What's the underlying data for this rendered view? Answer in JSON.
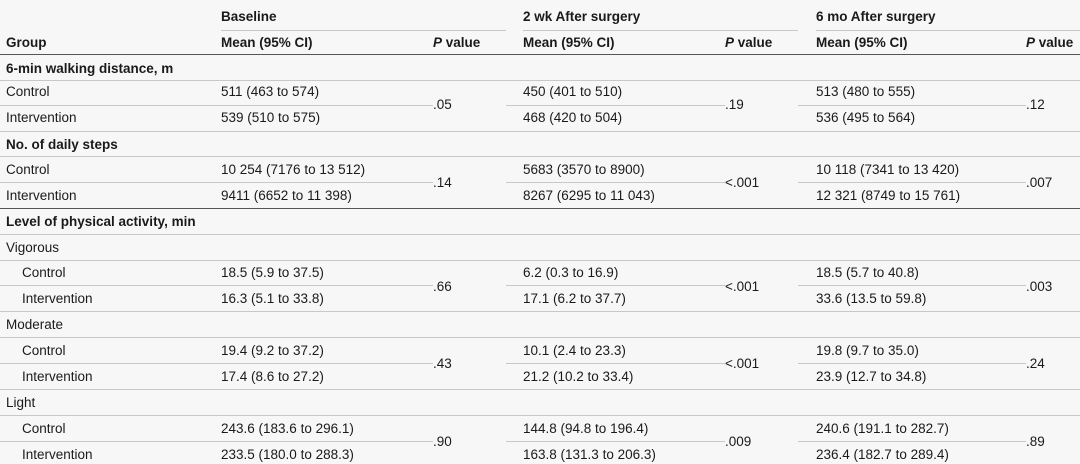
{
  "headers": {
    "group": "Group",
    "periods": [
      "Baseline",
      "2 wk After surgery",
      "6 mo After surgery"
    ],
    "mean_label": "Mean (95% CI)",
    "p_label_italic": "P",
    "p_label_rest": " value"
  },
  "sections": [
    {
      "title": "6-min walking distance, m",
      "blocks": [
        {
          "rows": [
            {
              "label": "Control",
              "values": [
                "511 (463 to 574)",
                "450 (401 to 510)",
                "513 (480 to 555)"
              ]
            },
            {
              "label": "Intervention",
              "values": [
                "539 (510 to 575)",
                "468 (420 to 504)",
                "536 (495 to 564)"
              ]
            }
          ],
          "p": [
            ".05",
            ".19",
            ".12"
          ]
        }
      ]
    },
    {
      "title": "No. of daily steps",
      "blocks": [
        {
          "rows": [
            {
              "label": "Control",
              "values": [
                "10 254 (7176 to 13 512)",
                "5683 (3570 to 8900)",
                "10 118 (7341 to 13 420)"
              ]
            },
            {
              "label": "Intervention",
              "values": [
                "9411 (6652 to 11 398)",
                "8267 (6295 to 11 043)",
                "12 321 (8749 to 15 761)"
              ]
            }
          ],
          "p": [
            ".14",
            "<.001",
            ".007"
          ]
        }
      ]
    },
    {
      "title": "Level of physical activity, min",
      "blocks": [
        {
          "subtitle": "Vigorous",
          "rows": [
            {
              "label": "Control",
              "values": [
                "18.5 (5.9 to 37.5)",
                "6.2 (0.3 to 16.9)",
                "18.5 (5.7 to 40.8)"
              ]
            },
            {
              "label": "Intervention",
              "values": [
                "16.3 (5.1 to 33.8)",
                "17.1 (6.2 to 37.7)",
                "33.6 (13.5 to 59.8)"
              ]
            }
          ],
          "p": [
            ".66",
            "<.001",
            ".003"
          ]
        },
        {
          "subtitle": "Moderate",
          "rows": [
            {
              "label": "Control",
              "values": [
                "19.4 (9.2 to 37.2)",
                "10.1 (2.4 to 23.3)",
                "19.8 (9.7 to 35.0)"
              ]
            },
            {
              "label": "Intervention",
              "values": [
                "17.4 (8.6 to 27.2)",
                "21.2 (10.2 to 33.4)",
                "23.9 (12.7 to 34.8)"
              ]
            }
          ],
          "p": [
            ".43",
            "<.001",
            ".24"
          ]
        },
        {
          "subtitle": "Light",
          "rows": [
            {
              "label": "Control",
              "values": [
                "243.6 (183.6 to 296.1)",
                "144.8 (94.8 to 196.4)",
                "240.6 (191.1 to 282.7)"
              ]
            },
            {
              "label": "Intervention",
              "values": [
                "233.5 (180.0 to 288.3)",
                "163.8 (131.3 to 206.3)",
                "236.4 (182.7 to 289.4)"
              ]
            }
          ],
          "p": [
            ".90",
            ".009",
            ".89"
          ]
        }
      ]
    }
  ]
}
